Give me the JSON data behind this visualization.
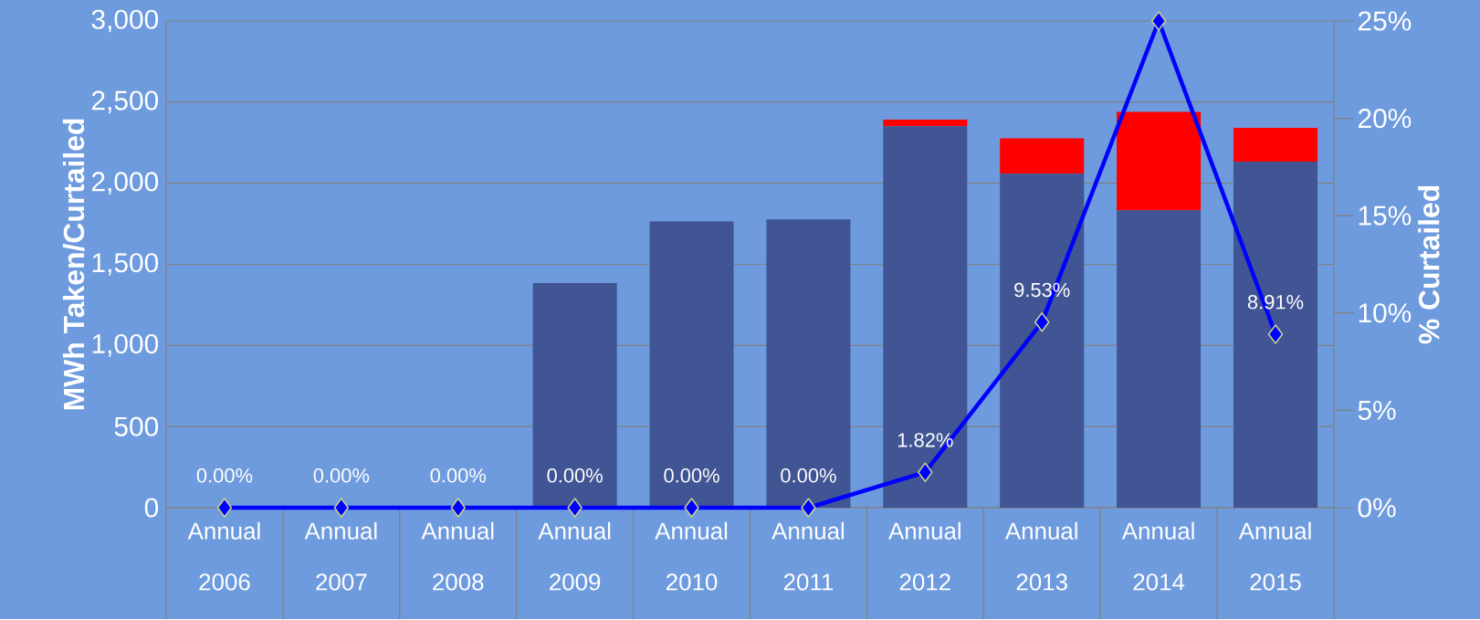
{
  "chart_data": {
    "type": "bar",
    "stacked": true,
    "grid": "y",
    "ylabel": "MWh Taken/Curtailed",
    "y2label": "% Curtailed",
    "categories": [
      "Annual 2006",
      "Annual 2007",
      "Annual 2008",
      "Annual 2009",
      "Annual 2010",
      "Annual 2011",
      "Annual 2012",
      "Annual 2013",
      "Annual 2014",
      "Annual 2015"
    ],
    "series": [
      {
        "color": "#415594",
        "values": [
          0,
          0,
          0,
          1384,
          1765,
          1777,
          2351,
          2059,
          1832,
          2133
        ]
      },
      {
        "color": "#ff0000",
        "values": [
          0,
          0,
          0,
          0,
          0,
          0,
          41,
          218,
          608,
          209
        ]
      },
      {
        "type": "line",
        "axis": "y2",
        "color": "#0000ff",
        "marker": "diamond",
        "values": [
          0,
          0,
          0,
          0,
          0,
          0,
          1.82,
          9.53,
          25,
          8.91
        ],
        "value_labels": [
          "0.00%",
          "0.00%",
          "0.00%",
          "0.00%",
          "0.00%",
          "0.00%",
          "1.82%",
          "9.53%",
          null,
          "8.91%"
        ]
      }
    ],
    "ylim": [
      0,
      3000
    ],
    "yticks": [
      {
        "value": 0,
        "label": "0"
      },
      {
        "value": 500,
        "label": "500"
      },
      {
        "value": 1000,
        "label": "1,000"
      },
      {
        "value": 1500,
        "label": "1,500"
      },
      {
        "value": 2000,
        "label": "2,000"
      },
      {
        "value": 2500,
        "label": "2,500"
      },
      {
        "value": 3000,
        "label": "3,000"
      }
    ],
    "y2lim": [
      0,
      25
    ],
    "y2ticks": [
      {
        "value": 0,
        "label": "0%"
      },
      {
        "value": 5,
        "label": "5%"
      },
      {
        "value": 10,
        "label": "10%"
      },
      {
        "value": 15,
        "label": "15%"
      },
      {
        "value": 20,
        "label": "20%"
      },
      {
        "value": 25,
        "label": "25%"
      }
    ]
  }
}
